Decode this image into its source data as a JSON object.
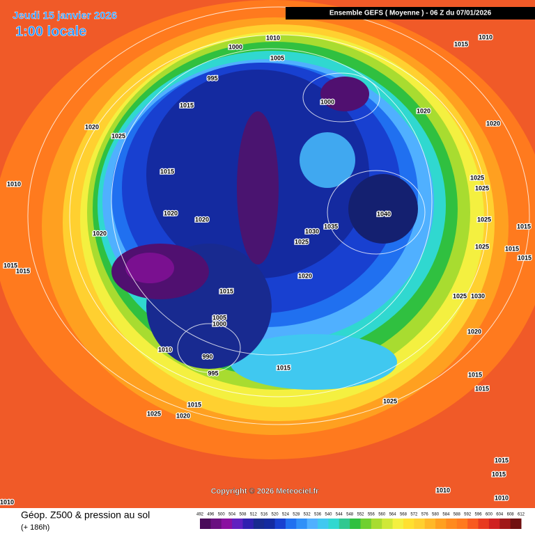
{
  "header": {
    "date": "Jeudi 15 janvier 2026",
    "time": "1:00 locale",
    "run": "Ensemble GEFS  ( Moyenne )  -  06 Z du 07/01/2026"
  },
  "isobars": [
    "1000",
    "1010",
    "1005",
    "995",
    "1000",
    "1015",
    "1020",
    "1020",
    "1025",
    "1015",
    "1010",
    "1040",
    "1020",
    "1020",
    "1035",
    "1030",
    "1020",
    "1025",
    "1020",
    "1015",
    "1005",
    "1000",
    "1010",
    "990",
    "995",
    "1015",
    "1025",
    "1015",
    "1025",
    "1020",
    "1010",
    "1015",
    "1020",
    "1025",
    "1025",
    "1025",
    "1025",
    "1015",
    "1015",
    "1015",
    "1025",
    "1030",
    "1020",
    "1015",
    "1015",
    "1015",
    "1015",
    "1010",
    "1010",
    "1010",
    "1015",
    "1015"
  ],
  "footer": {
    "field": "Géop. Z500 & pression au sol",
    "lead": "(+ 186h)",
    "copyright": "Copyright © 2026 Meteociel.fr"
  },
  "colorbar": {
    "labels": [
      "492",
      "496",
      "500",
      "504",
      "508",
      "512",
      "516",
      "520",
      "524",
      "528",
      "532",
      "536",
      "540",
      "544",
      "548",
      "552",
      "556",
      "560",
      "564",
      "568",
      "572",
      "576",
      "580",
      "584",
      "588",
      "592",
      "596",
      "600",
      "604",
      "608",
      "612"
    ]
  }
}
